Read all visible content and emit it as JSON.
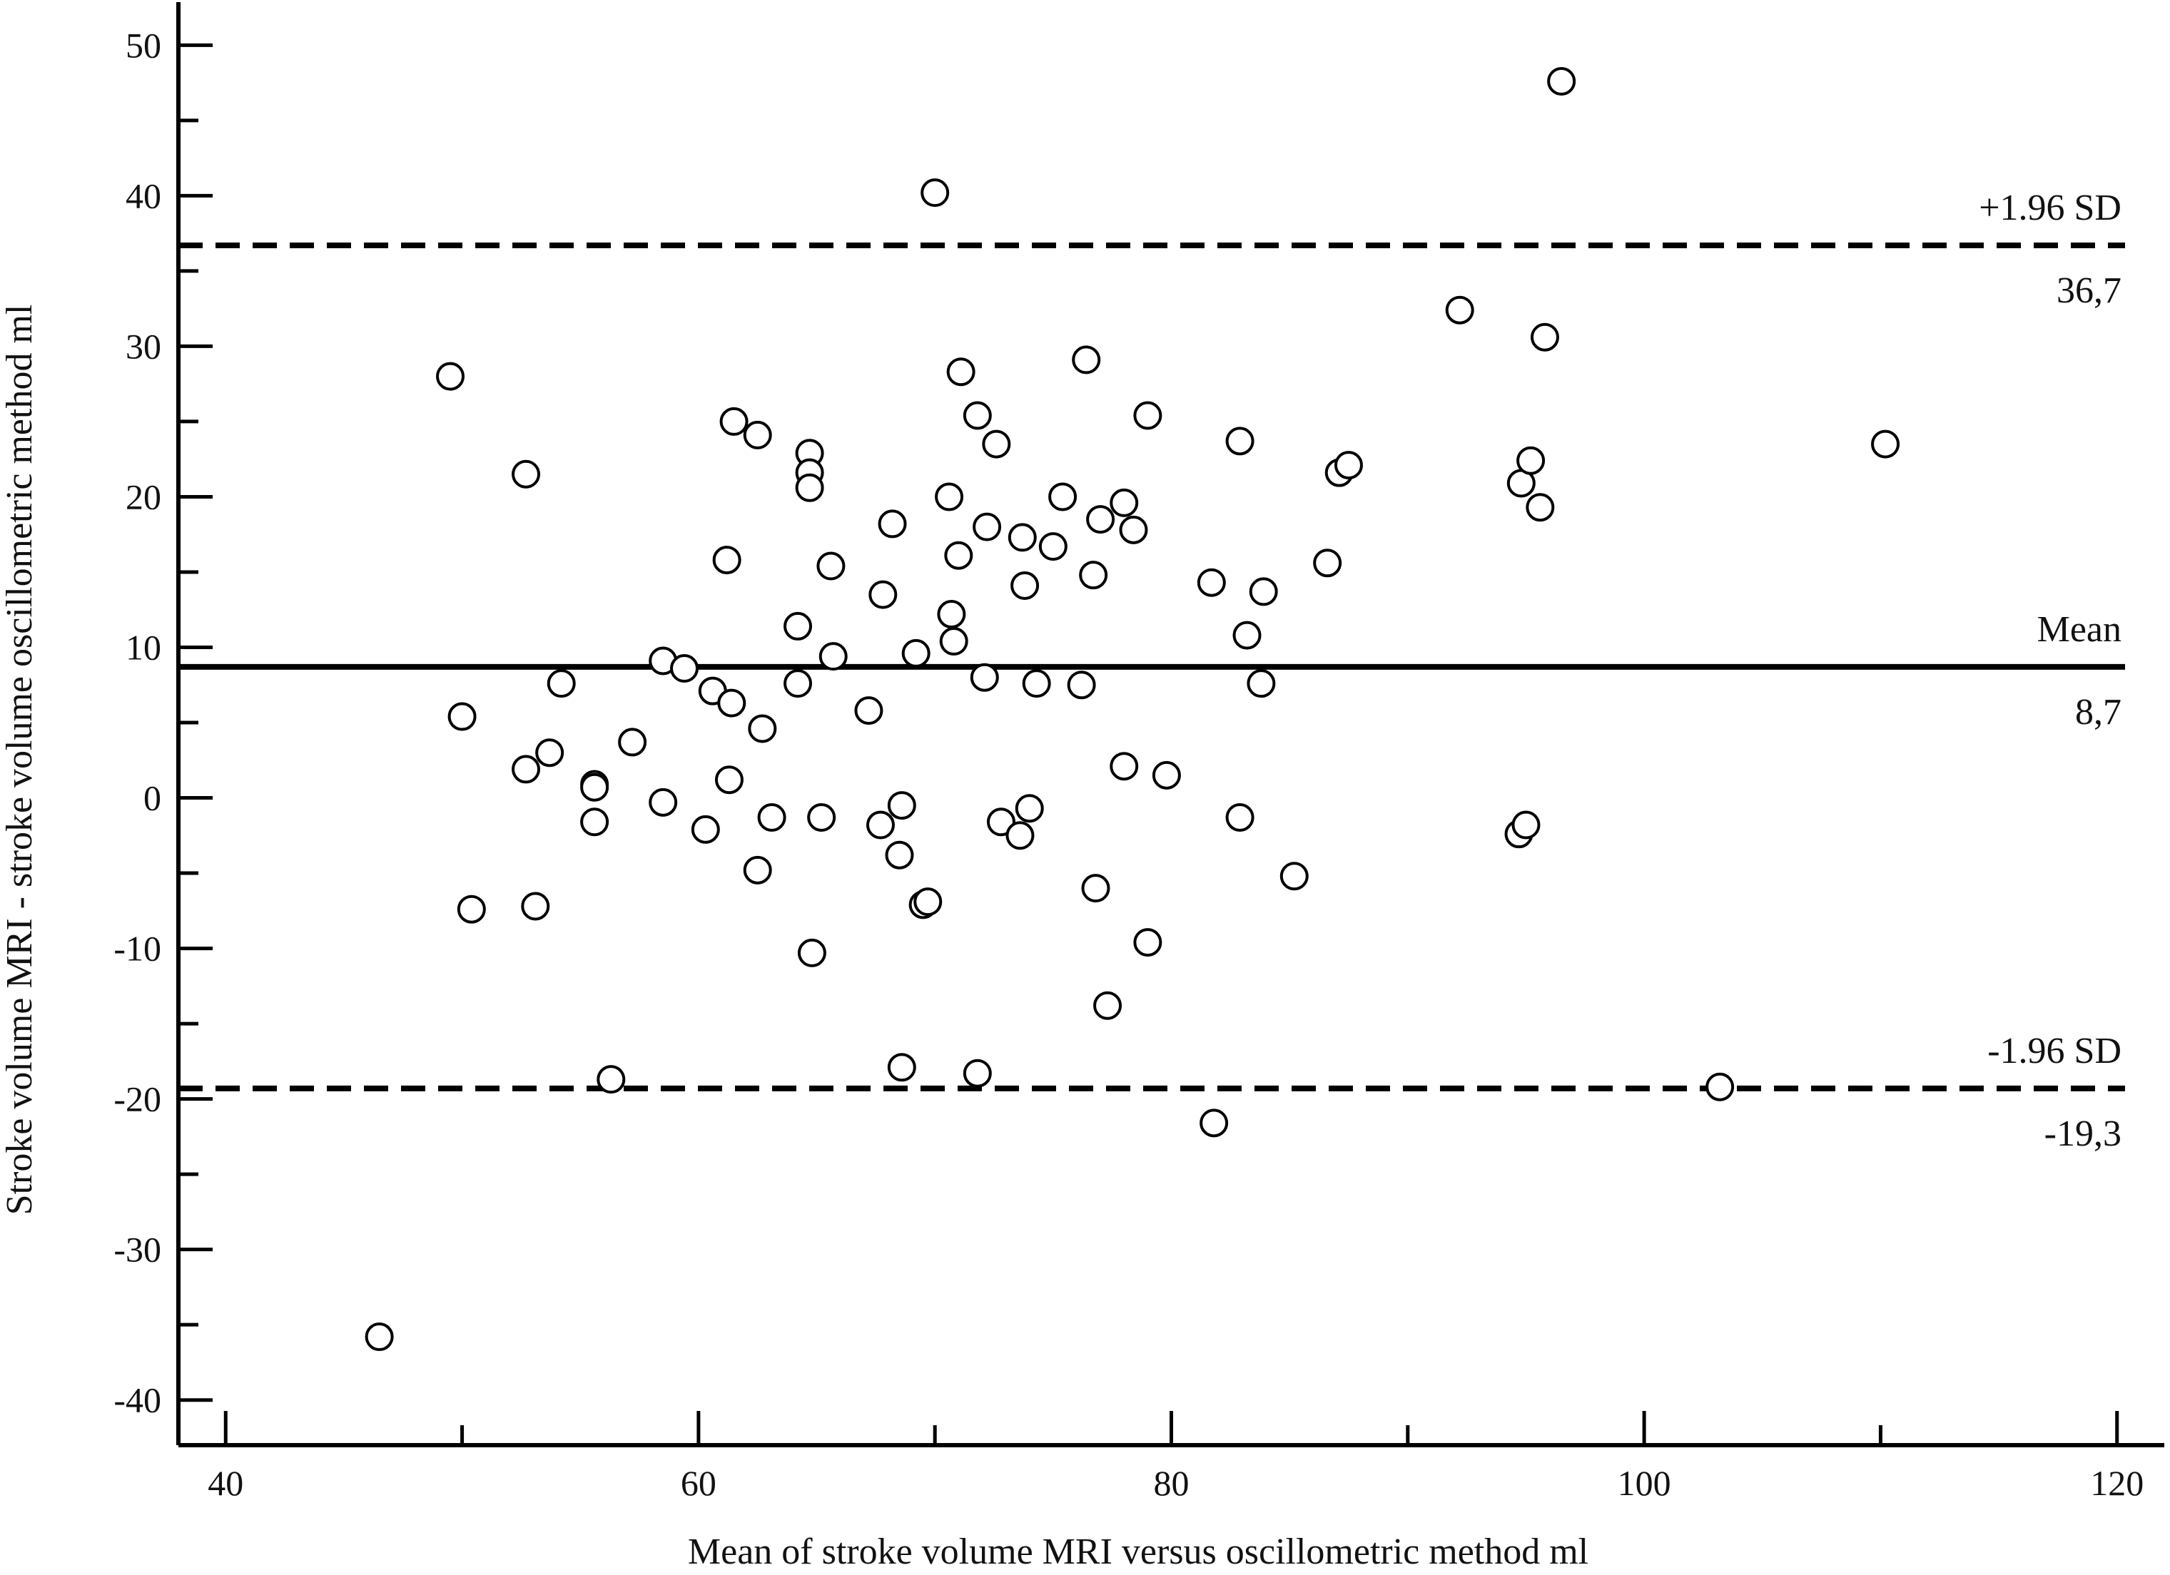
{
  "chart_data": {
    "type": "scatter",
    "title": "",
    "xlabel": "Mean of stroke volume MRI versus oscillometric method ml",
    "ylabel": "Stroke volume MRI - stroke volume oscillometric method ml",
    "xlim": [
      38,
      122
    ],
    "ylim": [
      -43,
      53
    ],
    "xticks": [
      40,
      60,
      80,
      100,
      120
    ],
    "yticks": [
      -40,
      -30,
      -20,
      -10,
      0,
      10,
      20,
      30,
      40,
      50
    ],
    "grid": false,
    "legend": "none",
    "reference_lines": [
      {
        "name": "+1.96 SD",
        "value_label": "36,7",
        "value": 36.7,
        "style": "dashed"
      },
      {
        "name": "Mean",
        "value_label": "8,7",
        "value": 8.7,
        "style": "solid"
      },
      {
        "name": "-1.96 SD",
        "value_label": "-19,3",
        "value": -19.3,
        "style": "dashed"
      }
    ],
    "points": [
      [
        46.5,
        -35.8
      ],
      [
        49.5,
        28.0
      ],
      [
        50.0,
        5.4
      ],
      [
        50.4,
        -7.4
      ],
      [
        52.7,
        21.5
      ],
      [
        52.7,
        1.9
      ],
      [
        53.1,
        -7.2
      ],
      [
        53.7,
        3.0
      ],
      [
        54.2,
        7.6
      ],
      [
        55.6,
        0.9
      ],
      [
        55.6,
        0.7
      ],
      [
        55.6,
        -1.6
      ],
      [
        56.3,
        -18.7
      ],
      [
        57.2,
        3.7
      ],
      [
        58.5,
        9.1
      ],
      [
        58.5,
        -0.3
      ],
      [
        59.4,
        8.6
      ],
      [
        60.3,
        -2.1
      ],
      [
        60.6,
        7.1
      ],
      [
        61.2,
        15.8
      ],
      [
        61.3,
        1.2
      ],
      [
        61.4,
        6.3
      ],
      [
        61.5,
        25.0
      ],
      [
        62.5,
        24.1
      ],
      [
        62.5,
        -4.8
      ],
      [
        62.7,
        4.6
      ],
      [
        63.1,
        -1.3
      ],
      [
        64.2,
        11.4
      ],
      [
        64.2,
        7.6
      ],
      [
        64.7,
        22.9
      ],
      [
        64.7,
        21.6
      ],
      [
        64.7,
        20.6
      ],
      [
        64.8,
        -10.3
      ],
      [
        65.2,
        -1.3
      ],
      [
        65.6,
        15.4
      ],
      [
        65.7,
        9.4
      ],
      [
        67.2,
        5.8
      ],
      [
        67.7,
        -1.8
      ],
      [
        67.8,
        13.5
      ],
      [
        68.2,
        18.2
      ],
      [
        68.5,
        -3.8
      ],
      [
        68.6,
        -0.5
      ],
      [
        68.6,
        -17.9
      ],
      [
        69.2,
        9.6
      ],
      [
        69.5,
        -7.1
      ],
      [
        69.7,
        -6.9
      ],
      [
        70.0,
        40.2
      ],
      [
        70.6,
        20.0
      ],
      [
        70.7,
        12.2
      ],
      [
        70.8,
        10.4
      ],
      [
        71.0,
        16.1
      ],
      [
        71.1,
        28.3
      ],
      [
        71.8,
        25.4
      ],
      [
        71.8,
        -18.3
      ],
      [
        72.1,
        8.0
      ],
      [
        72.2,
        18.0
      ],
      [
        72.6,
        23.5
      ],
      [
        72.8,
        -1.6
      ],
      [
        73.6,
        -2.5
      ],
      [
        73.7,
        17.3
      ],
      [
        73.8,
        14.1
      ],
      [
        74.0,
        -0.7
      ],
      [
        74.3,
        7.6
      ],
      [
        75.0,
        16.7
      ],
      [
        75.4,
        20.0
      ],
      [
        76.2,
        7.5
      ],
      [
        76.4,
        29.1
      ],
      [
        76.7,
        14.8
      ],
      [
        76.8,
        -6.0
      ],
      [
        77.0,
        18.5
      ],
      [
        77.3,
        -13.8
      ],
      [
        78.0,
        19.6
      ],
      [
        78.0,
        2.1
      ],
      [
        78.4,
        17.8
      ],
      [
        79.0,
        25.4
      ],
      [
        79.0,
        -9.6
      ],
      [
        79.8,
        1.5
      ],
      [
        81.7,
        14.3
      ],
      [
        81.8,
        -21.6
      ],
      [
        82.9,
        23.7
      ],
      [
        82.9,
        -1.3
      ],
      [
        83.2,
        10.8
      ],
      [
        83.8,
        7.6
      ],
      [
        83.9,
        13.7
      ],
      [
        85.2,
        -5.2
      ],
      [
        86.6,
        15.6
      ],
      [
        87.1,
        21.6
      ],
      [
        87.5,
        22.1
      ],
      [
        92.2,
        32.4
      ],
      [
        94.7,
        -2.4
      ],
      [
        94.8,
        20.9
      ],
      [
        95.0,
        -1.8
      ],
      [
        95.2,
        22.4
      ],
      [
        95.6,
        19.3
      ],
      [
        95.8,
        30.6
      ],
      [
        96.5,
        47.6
      ],
      [
        103.2,
        -19.2
      ],
      [
        110.2,
        23.5
      ]
    ]
  }
}
